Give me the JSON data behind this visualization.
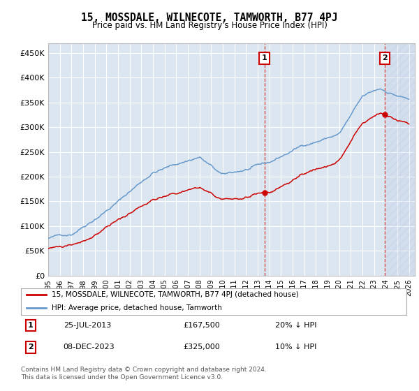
{
  "title": "15, MOSSDALE, WILNECOTE, TAMWORTH, B77 4PJ",
  "subtitle": "Price paid vs. HM Land Registry's House Price Index (HPI)",
  "line1_label": "15, MOSSDALE, WILNECOTE, TAMWORTH, B77 4PJ (detached house)",
  "line2_label": "HPI: Average price, detached house, Tamworth",
  "line1_color": "#cc0000",
  "line2_color": "#6699cc",
  "plot_bg_color": "#dce6f1",
  "marker1_date": "25-JUL-2013",
  "marker1_price": 167500,
  "marker1_note": "20% ↓ HPI",
  "marker1_x": 2013.58,
  "marker2_date": "08-DEC-2023",
  "marker2_price": 325000,
  "marker2_note": "10% ↓ HPI",
  "marker2_x": 2023.92,
  "yticks": [
    0,
    50000,
    100000,
    150000,
    200000,
    250000,
    300000,
    350000,
    400000,
    450000
  ],
  "ylim": [
    0,
    470000
  ],
  "xlim_start": 1995.0,
  "xlim_end": 2026.5,
  "footnote": "Contains HM Land Registry data © Crown copyright and database right 2024.\nThis data is licensed under the Open Government Licence v3.0."
}
